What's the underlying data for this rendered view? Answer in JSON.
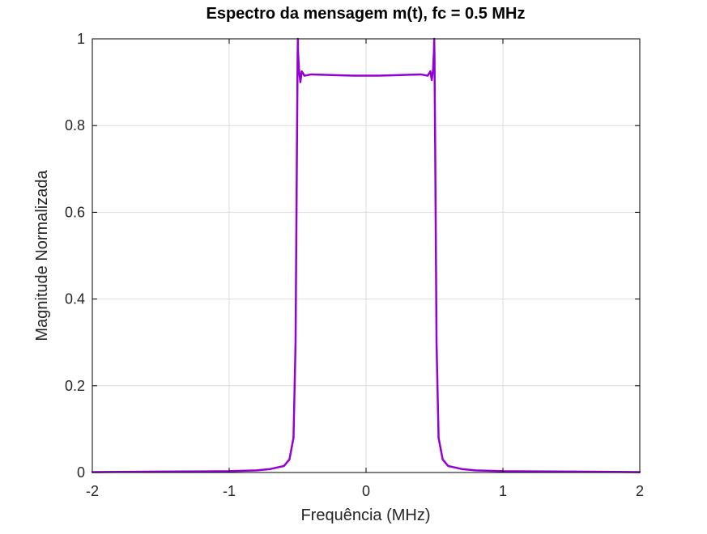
{
  "chart_data": {
    "type": "line",
    "title": "Espectro da mensagem m(t), fc = 0.5 MHz",
    "xlabel": "Frequência (MHz)",
    "ylabel": "Magnitude Normalizada",
    "xlim": [
      -2,
      2
    ],
    "ylim": [
      0,
      1
    ],
    "xticks": [
      -2,
      -1,
      0,
      1,
      2
    ],
    "xtick_labels": [
      "-2",
      "-1",
      "0",
      "1",
      "2"
    ],
    "yticks": [
      0,
      0.2,
      0.4,
      0.6,
      0.8,
      1
    ],
    "ytick_labels": [
      "0",
      "0.2",
      "0.4",
      "0.6",
      "0.8",
      "1"
    ],
    "grid": true,
    "colors": {
      "series": "#9400D3",
      "grid": "#dcdcdc",
      "axes": "#000000"
    },
    "series": [
      {
        "x": [
          -2.0,
          -1.5,
          -1.0,
          -0.8,
          -0.7,
          -0.6,
          -0.56,
          -0.53,
          -0.515,
          -0.505,
          -0.5,
          -0.498,
          -0.497,
          -0.49,
          -0.48,
          -0.47,
          -0.45,
          -0.4,
          -0.3,
          -0.2,
          -0.1,
          0.0,
          0.1,
          0.2,
          0.3,
          0.4,
          0.45,
          0.47,
          0.48,
          0.49,
          0.496,
          0.498,
          0.5,
          0.505,
          0.515,
          0.53,
          0.56,
          0.6,
          0.7,
          0.8,
          1.0,
          1.5,
          2.0
        ],
        "y": [
          0.001,
          0.002,
          0.003,
          0.005,
          0.008,
          0.015,
          0.03,
          0.08,
          0.3,
          0.75,
          0.96,
          1.0,
          0.97,
          0.93,
          0.9,
          0.925,
          0.915,
          0.918,
          0.917,
          0.916,
          0.915,
          0.915,
          0.915,
          0.916,
          0.917,
          0.918,
          0.915,
          0.925,
          0.905,
          0.93,
          0.97,
          1.0,
          0.96,
          0.75,
          0.3,
          0.08,
          0.03,
          0.015,
          0.008,
          0.005,
          0.003,
          0.002,
          0.001
        ]
      }
    ]
  }
}
